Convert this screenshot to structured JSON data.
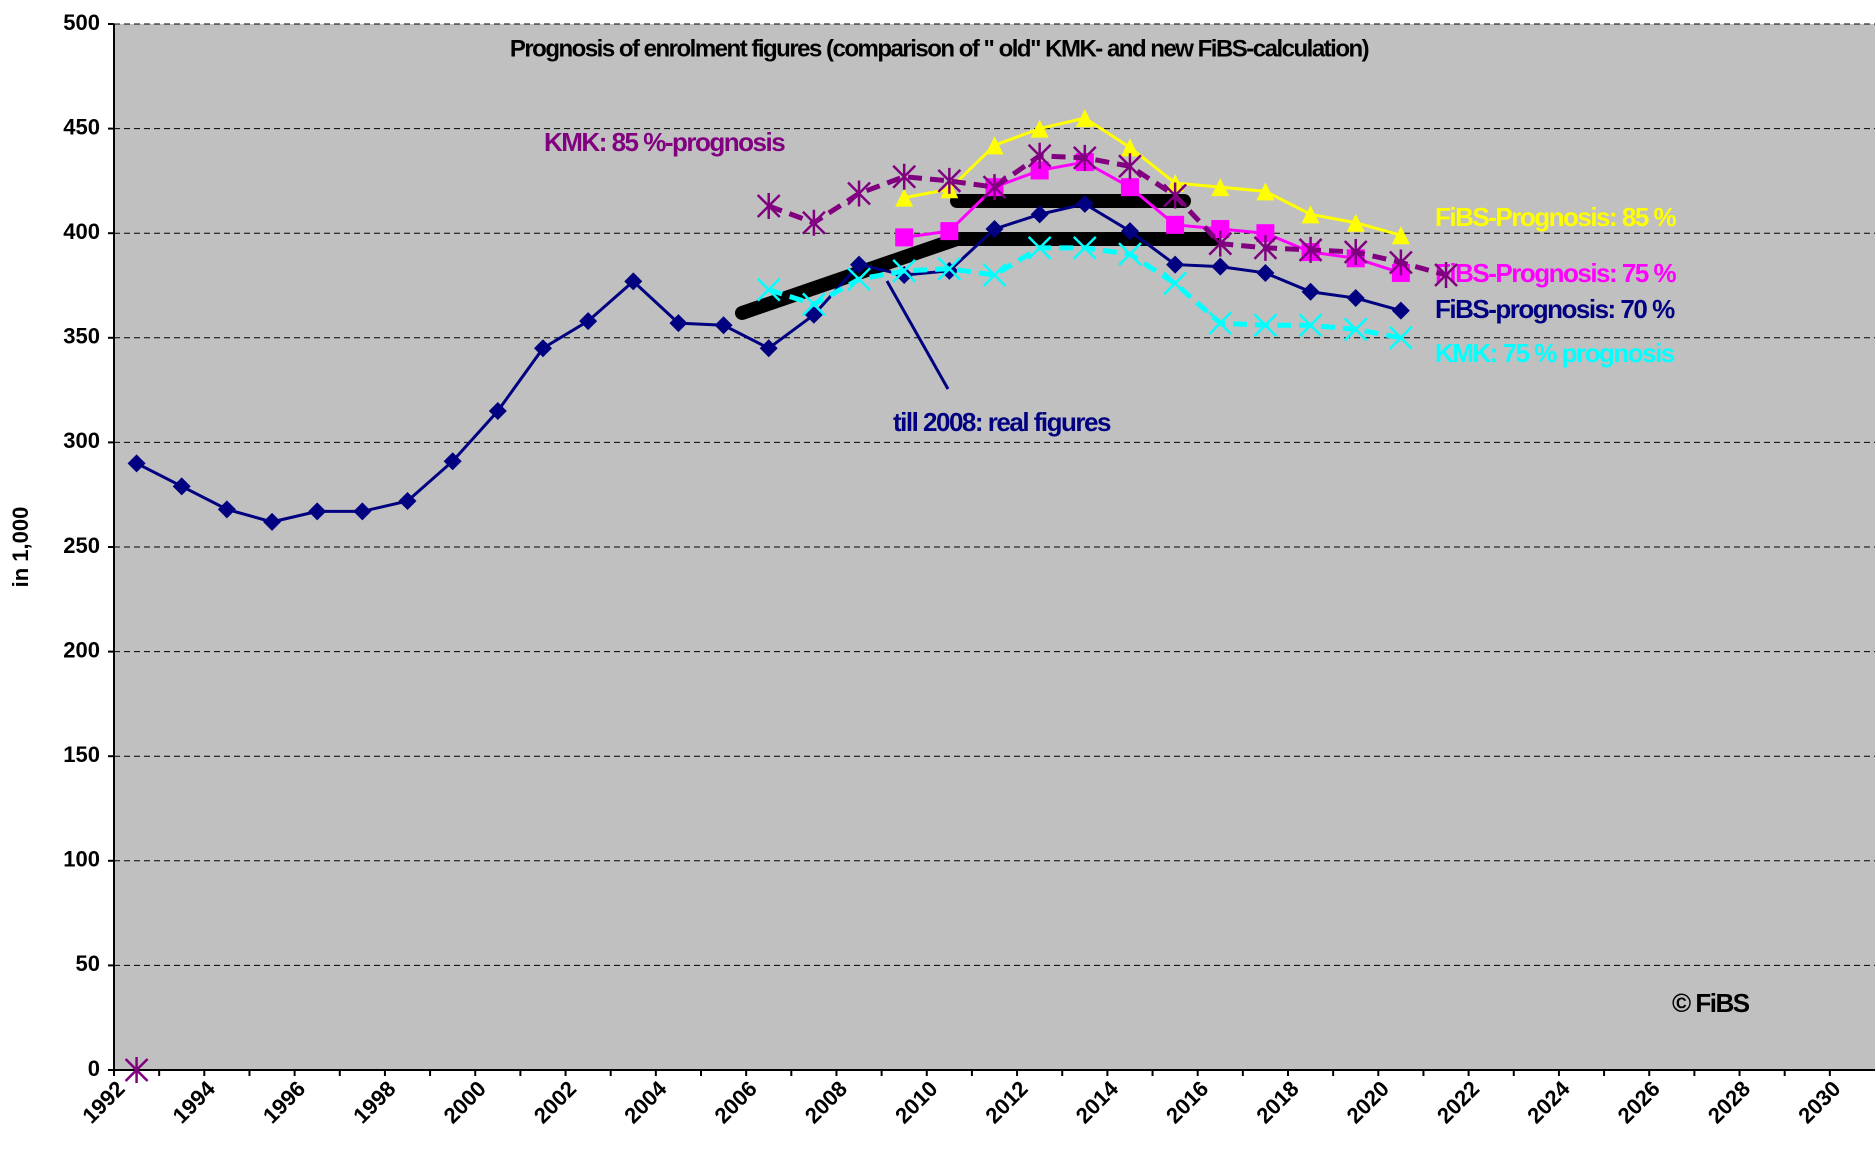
{
  "chart_data": {
    "type": "line",
    "title": "Prognosis of enrolment figures (comparison of \" old\"  KMK-  and new FiBS-calculation)",
    "y_label": "in 1,000",
    "annotations": [
      "till 2008: real figures",
      "© FiBS"
    ],
    "categories": [
      "1992",
      null,
      "1994",
      null,
      "1996",
      null,
      "1998",
      null,
      "2000",
      null,
      "2002",
      null,
      "2004",
      null,
      "2006",
      null,
      "2008",
      null,
      "2010",
      null,
      "2012",
      null,
      "2014",
      null,
      "2016",
      null,
      "2018",
      null,
      "2020",
      null,
      "2022",
      null,
      "2024",
      null,
      "2026",
      null,
      "2028",
      null,
      "2030"
    ],
    "ylim": [
      0,
      500
    ],
    "yticks": [
      0,
      50,
      100,
      150,
      200,
      250,
      300,
      350,
      400,
      450,
      500
    ],
    "grid": true,
    "series": [
      {
        "name": "FiBS-prognosis: 70 %",
        "color": "#000080",
        "marker": "diamond",
        "dash": false,
        "values": [
          290,
          279,
          268,
          262,
          267,
          267,
          272,
          291,
          315,
          345,
          358,
          377,
          357,
          356,
          345,
          361,
          385,
          380,
          382,
          402,
          409,
          414,
          401,
          385,
          384,
          381,
          372,
          369,
          363,
          null,
          null,
          null,
          null,
          null,
          null,
          null,
          null,
          null,
          null
        ]
      },
      {
        "name": "FiBS-Prognosis: 85 %",
        "color": "#ffff00",
        "marker": "triangle",
        "dash": false,
        "values": [
          null,
          null,
          null,
          null,
          null,
          null,
          null,
          null,
          null,
          null,
          null,
          null,
          null,
          null,
          null,
          null,
          null,
          417,
          421,
          442,
          450,
          455,
          441,
          424,
          422,
          420,
          409,
          405,
          399,
          null,
          null,
          null,
          null,
          null,
          null,
          null,
          null,
          null,
          null
        ]
      },
      {
        "name": "FiBS-Prognosis: 75 %",
        "color": "#ff00ff",
        "marker": "square",
        "dash": false,
        "values": [
          null,
          null,
          null,
          null,
          null,
          null,
          null,
          null,
          null,
          null,
          null,
          null,
          null,
          null,
          null,
          null,
          null,
          398,
          401,
          422,
          430,
          434,
          422,
          404,
          402,
          400,
          391,
          388,
          381,
          null,
          null,
          null,
          null,
          null,
          null,
          null,
          null,
          null,
          null
        ]
      },
      {
        "name": "KMK: 85 %-prognosis",
        "color": "#800080",
        "marker": "asterisk",
        "dash": true,
        "values": [
          0,
          null,
          null,
          null,
          null,
          null,
          null,
          null,
          null,
          null,
          null,
          null,
          null,
          null,
          413,
          405,
          419,
          427,
          425,
          422,
          437,
          436,
          432,
          418,
          395,
          393,
          392,
          391,
          386,
          380,
          null,
          null,
          null,
          null,
          null,
          null,
          null,
          null,
          null
        ]
      },
      {
        "name": "KMK: 75 % prognosis",
        "color": "#00ffff",
        "marker": "x",
        "dash": true,
        "values": [
          null,
          null,
          null,
          null,
          null,
          null,
          null,
          null,
          null,
          null,
          null,
          null,
          null,
          null,
          373,
          366,
          378,
          382,
          383,
          380,
          393,
          393,
          390,
          376,
          357,
          356,
          356,
          354,
          350,
          null,
          null,
          null,
          null,
          null,
          null,
          null,
          null,
          null,
          null
        ]
      }
    ]
  }
}
